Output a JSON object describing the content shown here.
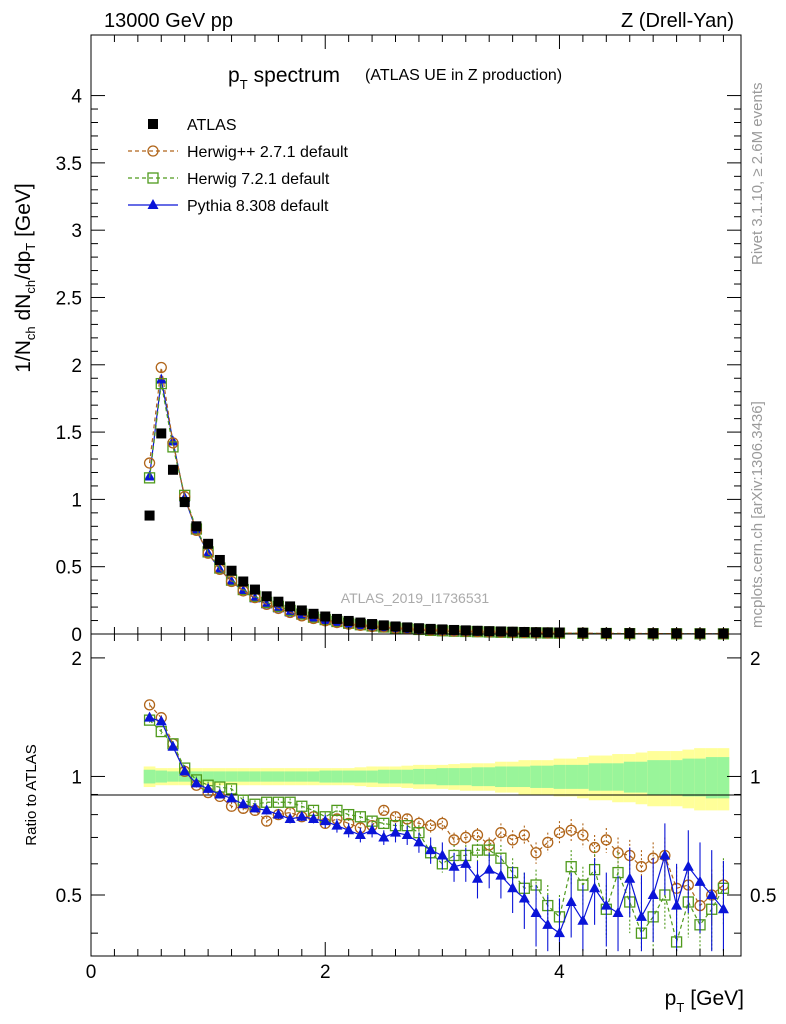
{
  "header": {
    "left": "13000 GeV pp",
    "right": "Z (Drell-Yan)"
  },
  "side_labels": {
    "rivet": "Rivet 3.1.10, ≥ 2.6M events",
    "mcplots": "mcplots.cern.ch [arXiv:1306.3436]"
  },
  "watermark": "ATLAS_2019_I1736531",
  "colors": {
    "atlas": "#000000",
    "herwigpp": "#b0651a",
    "herwig7": "#4f9a1c",
    "pythia": "#0a14d8",
    "band_inner": "#99f59a",
    "band_outer": "#ffff99"
  },
  "chart_data": [
    {
      "type": "scatter",
      "panel": "main",
      "title_main": "p",
      "title_sub": "T",
      "title_rest": "spectrum",
      "title_note": "(ATLAS UE in Z production)",
      "ylabel": "1/N_ch dN_ch/dp_T [GeV]",
      "ylim": [
        0,
        4.45
      ],
      "xlim": [
        0,
        5.55
      ],
      "y_ticks": [
        0,
        0.5,
        1,
        1.5,
        2,
        2.5,
        3,
        3.5,
        4
      ],
      "y_tick_labels": [
        "0",
        "0.5",
        "1",
        "1.5",
        "2",
        "2.5",
        "3",
        "3.5",
        "4"
      ],
      "legend_position": "top-left",
      "x": [
        0.5,
        0.6,
        0.7,
        0.8,
        0.9,
        1.0,
        1.1,
        1.2,
        1.3,
        1.4,
        1.5,
        1.6,
        1.7,
        1.8,
        1.9,
        2.0,
        2.1,
        2.2,
        2.3,
        2.4,
        2.5,
        2.6,
        2.7,
        2.8,
        2.9,
        3.0,
        3.1,
        3.2,
        3.3,
        3.4,
        3.5,
        3.6,
        3.7,
        3.8,
        3.9,
        4.0,
        4.2,
        4.4,
        4.6,
        4.8,
        5.0,
        5.2,
        5.4
      ],
      "series": [
        {
          "name": "ATLAS",
          "marker": "square-filled",
          "values": [
            0.88,
            1.49,
            1.22,
            0.98,
            0.8,
            0.67,
            0.55,
            0.47,
            0.39,
            0.33,
            0.28,
            0.24,
            0.205,
            0.175,
            0.15,
            0.13,
            0.112,
            0.097,
            0.085,
            0.074,
            0.064,
            0.056,
            0.049,
            0.043,
            0.038,
            0.034,
            0.03,
            0.027,
            0.024,
            0.021,
            0.019,
            0.017,
            0.015,
            0.013,
            0.012,
            0.011,
            0.009,
            0.0075,
            0.0063,
            0.0053,
            0.0045,
            0.0038,
            0.0032
          ]
        },
        {
          "name": "Herwig++ 2.7.1 default",
          "marker": "circle-open",
          "values": [
            1.27,
            1.98,
            1.42,
            1.02,
            0.77,
            0.6,
            0.48,
            0.39,
            0.32,
            0.27,
            0.22,
            0.19,
            0.16,
            0.135,
            0.115,
            0.098,
            0.085,
            0.073,
            0.064,
            0.056,
            0.052,
            0.044,
            0.039,
            0.034,
            0.029,
            0.026,
            0.022,
            0.02,
            0.018,
            0.016,
            0.014,
            0.012,
            0.011,
            0.009,
            0.008,
            0.0075,
            0.006,
            0.0047,
            0.004,
            0.0033,
            0.0027,
            0.0022,
            0.0018
          ]
        },
        {
          "name": "Herwig 7.2.1 default",
          "marker": "square-open",
          "values": [
            1.16,
            1.86,
            1.39,
            1.03,
            0.78,
            0.61,
            0.49,
            0.4,
            0.33,
            0.28,
            0.235,
            0.205,
            0.175,
            0.148,
            0.125,
            0.107,
            0.093,
            0.08,
            0.069,
            0.06,
            0.052,
            0.045,
            0.039,
            0.034,
            0.027,
            0.024,
            0.021,
            0.019,
            0.017,
            0.015,
            0.013,
            0.011,
            0.0095,
            0.0082,
            0.0072,
            0.0063,
            0.0048,
            0.0036,
            0.0027,
            0.0021,
            0.0016,
            0.0014,
            0.0012
          ]
        },
        {
          "name": "Pythia 8.308 default",
          "marker": "triangle-filled",
          "values": [
            1.17,
            1.89,
            1.43,
            1.01,
            0.77,
            0.6,
            0.48,
            0.39,
            0.32,
            0.265,
            0.22,
            0.19,
            0.16,
            0.14,
            0.12,
            0.1,
            0.086,
            0.074,
            0.063,
            0.054,
            0.046,
            0.04,
            0.034,
            0.029,
            0.025,
            0.021,
            0.018,
            0.016,
            0.014,
            0.012,
            0.01,
            0.009,
            0.0078,
            0.0068,
            0.006,
            0.0052,
            0.004,
            0.0031,
            0.0024,
            0.0019,
            0.0015,
            0.0012,
            0.001
          ]
        }
      ]
    },
    {
      "type": "scatter",
      "panel": "ratio",
      "ylabel": "Ratio to ATLAS",
      "xlabel_main": "p",
      "xlabel_sub": "T",
      "xlabel_rest": "[GeV]",
      "ylim": [
        0.35,
        2.3
      ],
      "xlim": [
        0,
        5.55
      ],
      "y_ticks": [
        0.5,
        1,
        2
      ],
      "y_tick_labels": [
        "0.5",
        "1",
        "2"
      ],
      "x_ticks": [
        0,
        2,
        4
      ],
      "x_tick_labels": [
        "0",
        "2",
        "4"
      ],
      "x": [
        0.5,
        0.6,
        0.7,
        0.8,
        0.9,
        1.0,
        1.1,
        1.2,
        1.3,
        1.4,
        1.5,
        1.6,
        1.7,
        1.8,
        1.9,
        2.0,
        2.1,
        2.2,
        2.3,
        2.4,
        2.5,
        2.6,
        2.7,
        2.8,
        2.9,
        3.0,
        3.1,
        3.2,
        3.3,
        3.4,
        3.5,
        3.6,
        3.7,
        3.8,
        3.9,
        4.0,
        4.1,
        4.2,
        4.3,
        4.4,
        4.5,
        4.6,
        4.7,
        4.8,
        4.9,
        5.0,
        5.1,
        5.2,
        5.3,
        5.4
      ],
      "band_inner": [
        0.04,
        0.035,
        0.03,
        0.03,
        0.03,
        0.03,
        0.03,
        0.03,
        0.03,
        0.03,
        0.03,
        0.03,
        0.03,
        0.03,
        0.03,
        0.035,
        0.035,
        0.035,
        0.035,
        0.035,
        0.04,
        0.04,
        0.04,
        0.045,
        0.045,
        0.05,
        0.05,
        0.05,
        0.055,
        0.055,
        0.06,
        0.06,
        0.06,
        0.065,
        0.065,
        0.07,
        0.07,
        0.07,
        0.08,
        0.08,
        0.08,
        0.09,
        0.09,
        0.1,
        0.1,
        0.1,
        0.11,
        0.11,
        0.12,
        0.12
      ],
      "band_outer": [
        0.06,
        0.05,
        0.05,
        0.05,
        0.05,
        0.05,
        0.05,
        0.05,
        0.05,
        0.05,
        0.05,
        0.05,
        0.05,
        0.05,
        0.05,
        0.05,
        0.05,
        0.05,
        0.055,
        0.06,
        0.06,
        0.06,
        0.065,
        0.07,
        0.07,
        0.07,
        0.075,
        0.08,
        0.08,
        0.08,
        0.09,
        0.09,
        0.1,
        0.1,
        0.1,
        0.11,
        0.11,
        0.12,
        0.13,
        0.13,
        0.14,
        0.14,
        0.15,
        0.16,
        0.16,
        0.16,
        0.17,
        0.18,
        0.18,
        0.18
      ],
      "series": [
        {
          "name": "Herwig++ 2.7.1 default",
          "marker": "circle-open",
          "values": [
            1.52,
            1.41,
            1.21,
            1.03,
            0.95,
            0.91,
            0.89,
            0.84,
            0.83,
            0.82,
            0.77,
            0.8,
            0.81,
            0.79,
            0.79,
            0.76,
            0.78,
            0.76,
            0.74,
            0.75,
            0.82,
            0.79,
            0.78,
            0.76,
            0.75,
            0.76,
            0.69,
            0.7,
            0.71,
            0.67,
            0.72,
            0.69,
            0.71,
            0.64,
            0.68,
            0.72,
            0.73,
            0.71,
            0.66,
            0.69,
            0.64,
            0.63,
            0.59,
            0.62,
            0.63,
            0.52,
            0.53,
            0.47,
            0.5,
            0.53
          ],
          "errors": [
            0.02,
            0.02,
            0.02,
            0.02,
            0.02,
            0.02,
            0.02,
            0.02,
            0.02,
            0.02,
            0.02,
            0.02,
            0.02,
            0.02,
            0.02,
            0.02,
            0.02,
            0.02,
            0.02,
            0.02,
            0.02,
            0.02,
            0.02,
            0.03,
            0.03,
            0.03,
            0.03,
            0.03,
            0.03,
            0.03,
            0.04,
            0.04,
            0.04,
            0.04,
            0.04,
            0.05,
            0.05,
            0.05,
            0.05,
            0.05,
            0.06,
            0.06,
            0.06,
            0.06,
            0.07,
            0.07,
            0.07,
            0.07,
            0.08,
            0.08
          ]
        },
        {
          "name": "Herwig 7.2.1 default",
          "marker": "square-open",
          "values": [
            1.39,
            1.3,
            1.21,
            1.05,
            0.98,
            0.95,
            0.94,
            0.93,
            0.87,
            0.85,
            0.86,
            0.86,
            0.86,
            0.84,
            0.82,
            0.79,
            0.82,
            0.8,
            0.79,
            0.77,
            0.76,
            0.75,
            0.75,
            0.72,
            0.64,
            0.6,
            0.63,
            0.63,
            0.65,
            0.65,
            0.62,
            0.57,
            0.52,
            0.53,
            0.47,
            0.44,
            0.59,
            0.53,
            0.58,
            0.46,
            0.57,
            0.48,
            0.4,
            0.44,
            0.5,
            0.38,
            0.48,
            0.42,
            0.46,
            0.52
          ],
          "errors": [
            0.02,
            0.02,
            0.02,
            0.02,
            0.02,
            0.02,
            0.02,
            0.02,
            0.02,
            0.02,
            0.02,
            0.02,
            0.02,
            0.02,
            0.02,
            0.02,
            0.02,
            0.02,
            0.02,
            0.02,
            0.02,
            0.03,
            0.03,
            0.03,
            0.03,
            0.03,
            0.04,
            0.04,
            0.04,
            0.04,
            0.05,
            0.05,
            0.05,
            0.05,
            0.06,
            0.06,
            0.06,
            0.06,
            0.07,
            0.07,
            0.07,
            0.08,
            0.08,
            0.08,
            0.09,
            0.09,
            0.09,
            0.1,
            0.1,
            0.1
          ]
        },
        {
          "name": "Pythia 8.308 default",
          "marker": "triangle-filled",
          "values": [
            1.41,
            1.38,
            1.19,
            1.03,
            0.96,
            0.93,
            0.9,
            0.88,
            0.85,
            0.83,
            0.82,
            0.8,
            0.78,
            0.79,
            0.78,
            0.77,
            0.75,
            0.73,
            0.71,
            0.73,
            0.7,
            0.72,
            0.71,
            0.68,
            0.65,
            0.63,
            0.59,
            0.6,
            0.55,
            0.58,
            0.56,
            0.52,
            0.49,
            0.45,
            0.42,
            0.4,
            0.48,
            0.43,
            0.52,
            0.47,
            0.45,
            0.55,
            0.44,
            0.5,
            0.63,
            0.47,
            0.59,
            0.54,
            0.5,
            0.46
          ],
          "errors": [
            0.02,
            0.02,
            0.02,
            0.02,
            0.02,
            0.02,
            0.02,
            0.02,
            0.02,
            0.02,
            0.02,
            0.02,
            0.02,
            0.02,
            0.02,
            0.03,
            0.03,
            0.03,
            0.03,
            0.03,
            0.03,
            0.04,
            0.04,
            0.04,
            0.05,
            0.05,
            0.05,
            0.06,
            0.06,
            0.06,
            0.07,
            0.07,
            0.08,
            0.08,
            0.08,
            0.09,
            0.09,
            0.1,
            0.1,
            0.1,
            0.11,
            0.11,
            0.12,
            0.12,
            0.13,
            0.13,
            0.14,
            0.14,
            0.15,
            0.15
          ]
        }
      ]
    }
  ]
}
